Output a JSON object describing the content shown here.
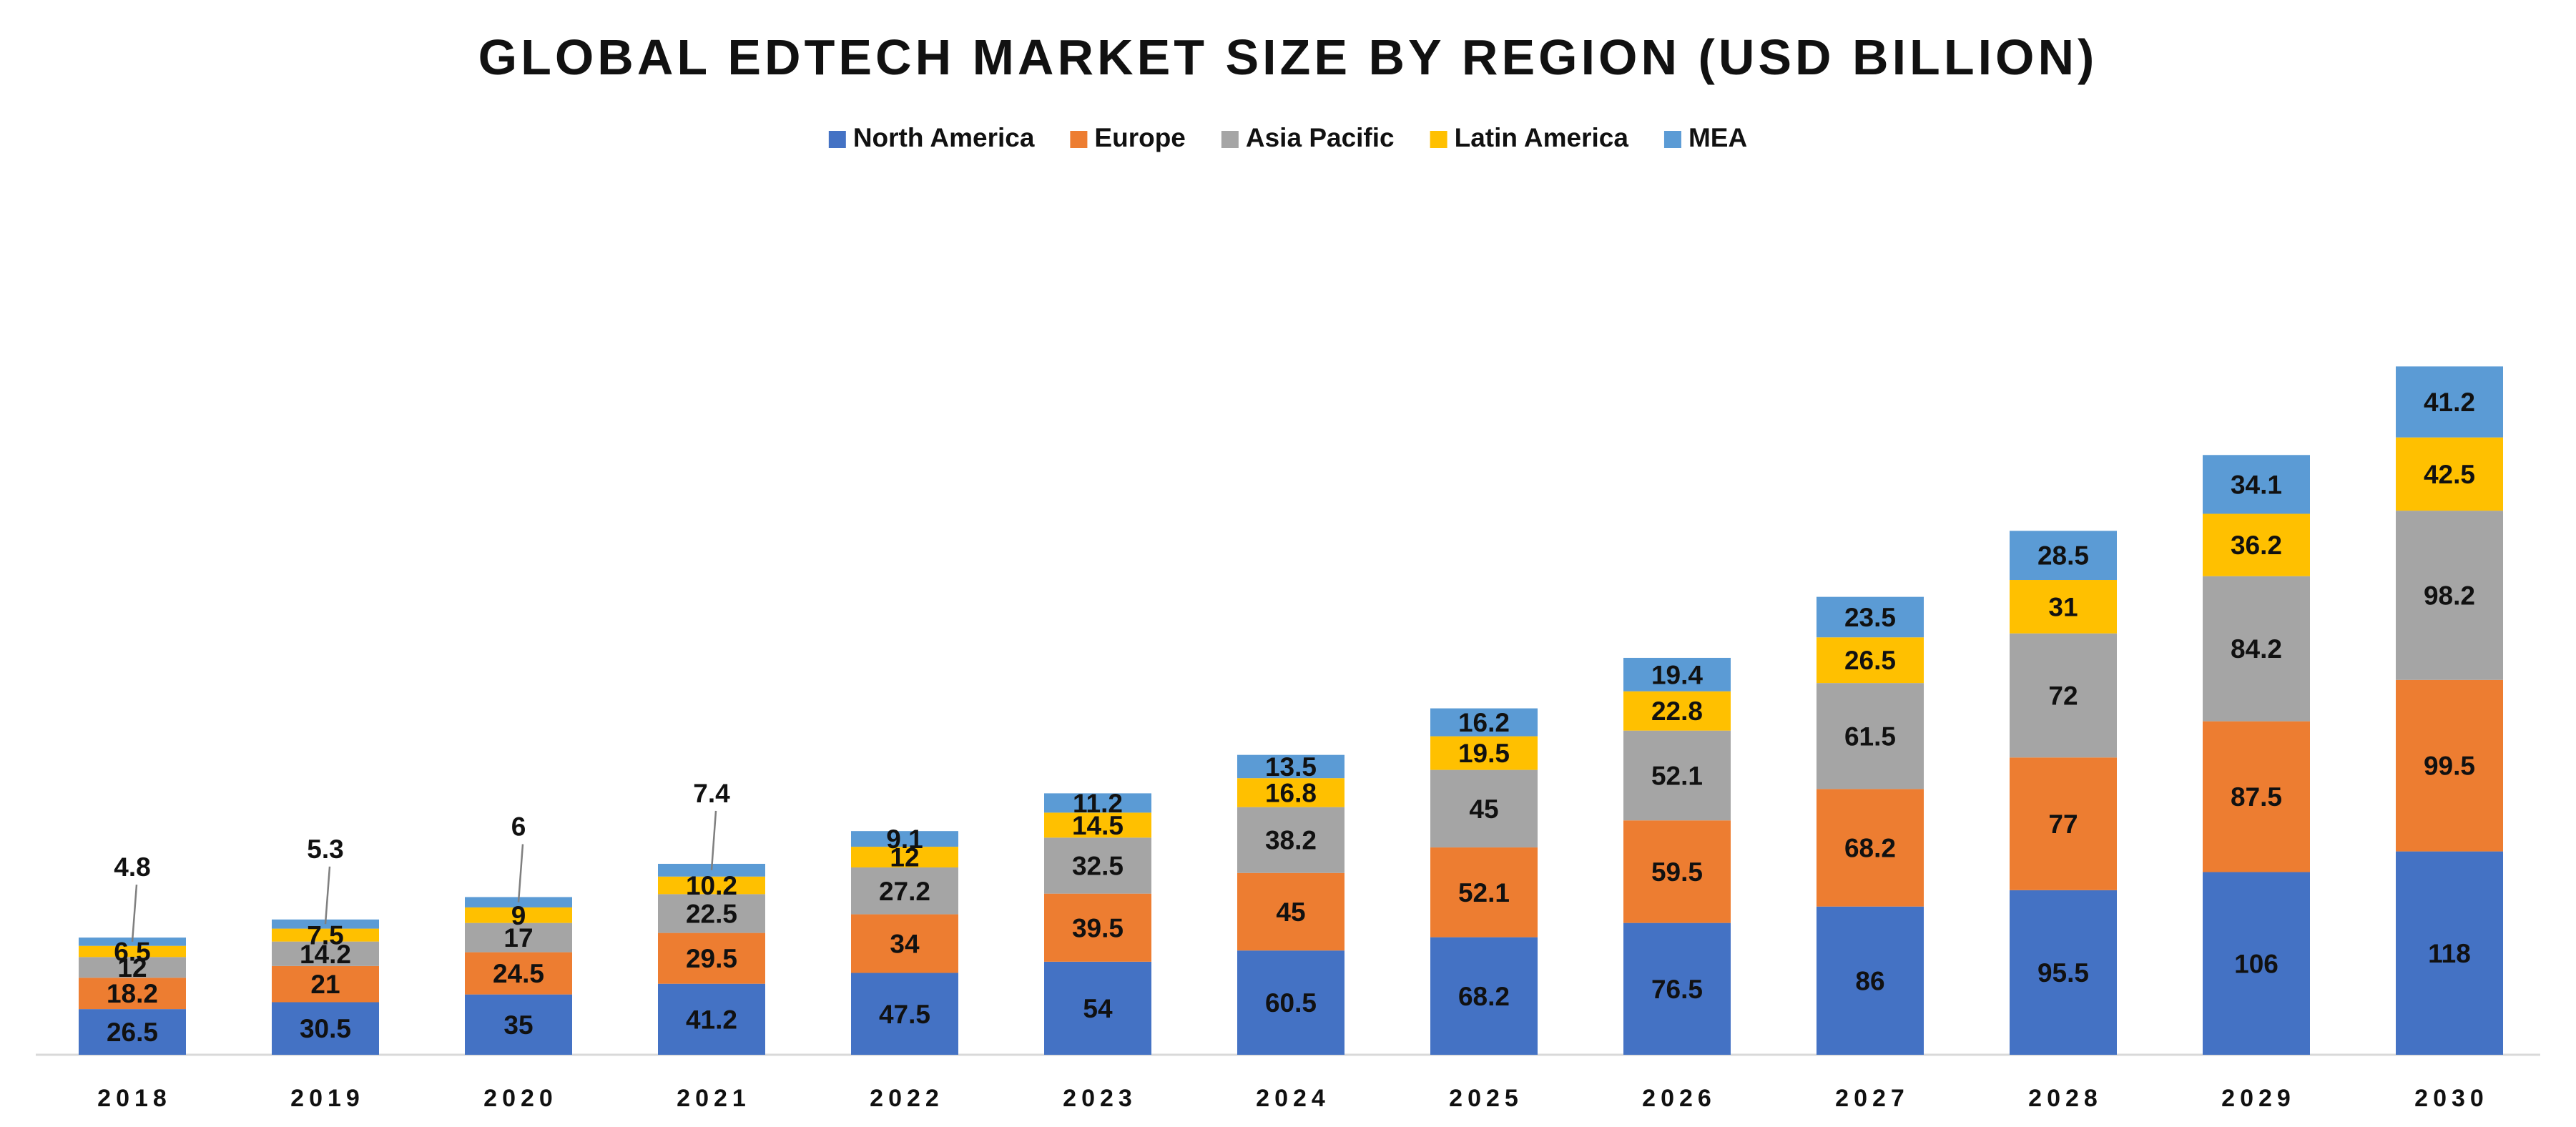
{
  "chart_data": {
    "type": "bar",
    "stacked": true,
    "title": "GLOBAL EDTECH MARKET SIZE BY REGION (USD BILLION)",
    "xlabel": "",
    "ylabel": "",
    "grid": false,
    "legend_position": "top-center",
    "categories": [
      "2018",
      "2019",
      "2020",
      "2021",
      "2022",
      "2023",
      "2024",
      "2025",
      "2026",
      "2027",
      "2028",
      "2029",
      "2030"
    ],
    "series": [
      {
        "name": "North America",
        "color": "#4472C4",
        "values": [
          26.5,
          30.5,
          35,
          41.2,
          47.5,
          54,
          60.5,
          68.2,
          76.5,
          86,
          95.5,
          106,
          118
        ]
      },
      {
        "name": "Europe",
        "color": "#ED7D31",
        "values": [
          18.2,
          21,
          24.5,
          29.5,
          34,
          39.5,
          45,
          52.1,
          59.5,
          68.2,
          77,
          87.5,
          99.5
        ]
      },
      {
        "name": "Asia Pacific",
        "color": "#A5A5A5",
        "values": [
          12,
          14.2,
          17,
          22.5,
          27.2,
          32.5,
          38.2,
          45,
          52.1,
          61.5,
          72,
          84.2,
          98.2
        ]
      },
      {
        "name": "Latin America",
        "color": "#FFC000",
        "values": [
          6.5,
          7.5,
          9,
          10.2,
          12,
          14.5,
          16.8,
          19.5,
          22.8,
          26.5,
          31,
          36.2,
          42.5
        ]
      },
      {
        "name": "MEA",
        "color": "#5B9BD5",
        "values": [
          4.8,
          5.3,
          6,
          7.4,
          9.1,
          11.2,
          13.5,
          16.2,
          19.4,
          23.5,
          28.5,
          34.1,
          41.2
        ]
      }
    ]
  }
}
